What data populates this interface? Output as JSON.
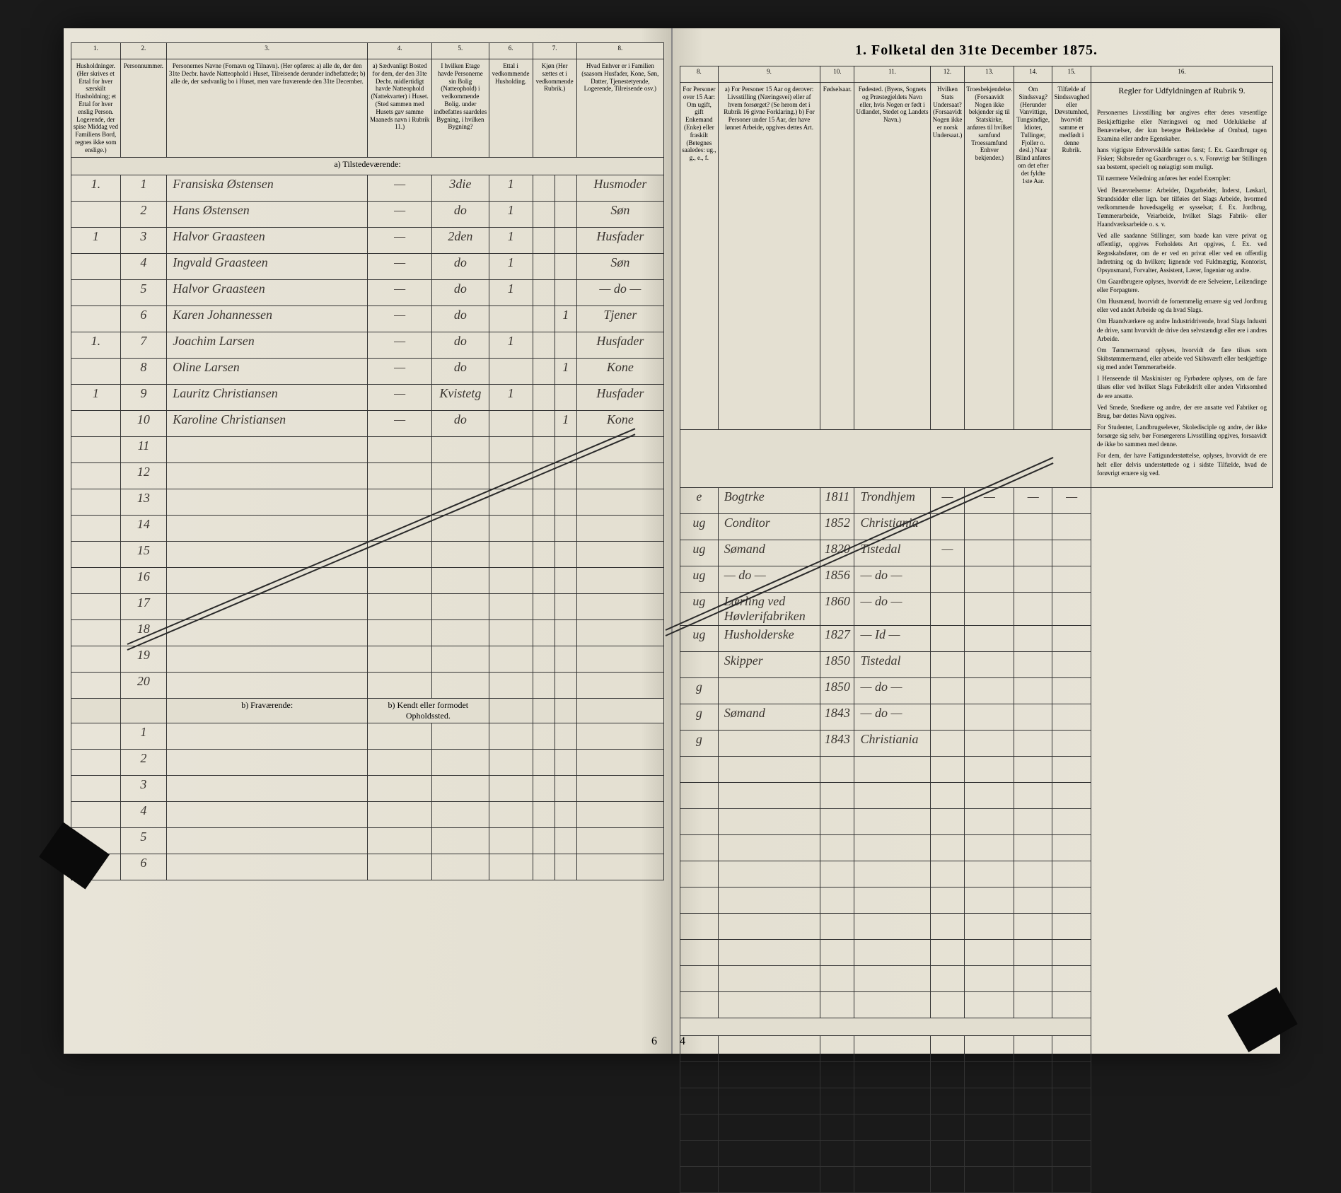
{
  "document": {
    "title": "1. Folketal den 31te December 1875.",
    "page_left": "6",
    "page_right": "4",
    "background_color": "#e8e4d8",
    "ink_color": "#3a3530",
    "line_color": "#333333"
  },
  "columns_left": [
    {
      "num": "1.",
      "header": "Husholdninger. (Her skrives et Ettal for hver særskilt Husholdning; et Ettal for hver enslig Person. Logerende, der spise Middag ved Familiens Bord, regnes ikke som enslige.)"
    },
    {
      "num": "2.",
      "header": "Personnummer."
    },
    {
      "num": "3.",
      "header": "Personernes Navne (Fornavn og Tilnavn). (Her opføres: a) alle de, der den 31te Decbr. havde Natteophold i Huset, Tilreisende derunder indbefattede; b) alle de, der sædvanlig bo i Huset, men vare fraværende den 31te December."
    },
    {
      "num": "4.",
      "header": "a) Sædvanligt Bosted for dem, der den 31te Decbr. midlertidigt havde Natteophold (Nattekvarter) i Huset. (Sted sammen med Husets gav samme Maaneds navn i Rubrik 11.)"
    },
    {
      "num": "5.",
      "header": "I hvilken Etage havde Personerne sin Bolig (Natteophold) i vedkommende Bolig. under indbefattes saardeles Bygning, i hvilken Bygning?"
    },
    {
      "num": "6.",
      "header": "Ettal i vedkommende Husholding."
    },
    {
      "num": "7.",
      "header": "Kjøn (Her sættes et i vedkommende Rubrik.)"
    },
    {
      "num": "8.",
      "header": "Hvad Enhver er i Familien (saasom Husfader, Kone, Søn, Datter, Tjenestetyende, Logerende, Tilreisende osv.)"
    }
  ],
  "columns_right": [
    {
      "num": "8.",
      "header": "For Personer over 15 Aar: Om ugift, gift Enkemand (Enke) eller fraskilt (Betegnes saaledes: ug., g., e., f."
    },
    {
      "num": "9.",
      "header": "a) For Personer 15 Aar og derover: Livsstilling (Næringsvei) eller af hvem forsørget? (Se herom det i Rubrik 16 givne Forklaring.) b) For Personer under 15 Aar, der have lønnet Arbeide, opgives dettes Art."
    },
    {
      "num": "10.",
      "header": "Fødselsaar."
    },
    {
      "num": "11.",
      "header": "Fødested. (Byens, Sognets og Præstegjeldets Navn eller, hvis Nogen er født i Udlandet, Stedet og Landets Navn.)"
    },
    {
      "num": "12.",
      "header": "Hvilken Stats Undersaat? (Forsaavidt Nogen ikke er norsk Undersaat.)"
    },
    {
      "num": "13.",
      "header": "Troesbekjendelse. (Forsaavidt Nogen ikke bekjender sig til Statskirke, anføres til hvilket samfund Troessamfund Enhver bekjender.)"
    },
    {
      "num": "14.",
      "header": "Om Sindssvag? (Herunder Vanvittige, Tungsindige, Idioter, Tullinger, Fjoller o. desl.) Naar Blind anføres om det efter det fyldte 1ste Aar."
    },
    {
      "num": "15.",
      "header": "Tilfælde af Sindssvaghed eller Døvstumhed, hvorvidt samme er medfødt i denne Rubrik."
    },
    {
      "num": "16.",
      "header": "Regler for Udfyldningen af Rubrik 9."
    }
  ],
  "section_a": "a) Tilstedeværende:",
  "section_b": "b) Fraværende:",
  "section_b_note": "b) Kendt eller formodet Opholdssted.",
  "rows": [
    {
      "hh": "1.",
      "num": "1",
      "name": "Fransiska Østensen",
      "col4": "—",
      "col5": "3die",
      "col6": "1",
      "col7": "",
      "col8l": "Husmoder",
      "col8r": "e",
      "col9": "Bogtrke",
      "col10": "1811",
      "col11": "Trondhjem",
      "col12": "—",
      "col13": "—",
      "col14": "—",
      "col15": "—"
    },
    {
      "hh": "",
      "num": "2",
      "name": "Hans Østensen",
      "col4": "—",
      "col5": "do",
      "col6": "1",
      "col7": "",
      "col8l": "Søn",
      "col8r": "ug",
      "col9": "Conditor",
      "col10": "1852",
      "col11": "Christiania",
      "col12": "",
      "col13": "",
      "col14": "",
      "col15": ""
    },
    {
      "hh": "1",
      "num": "3",
      "name": "Halvor Graasteen",
      "col4": "—",
      "col5": "2den",
      "col6": "1",
      "col7": "",
      "col8l": "Husfader",
      "col8r": "ug",
      "col9": "Sømand",
      "col10": "1820",
      "col11": "Tistedal",
      "col12": "—",
      "col13": "",
      "col14": "",
      "col15": ""
    },
    {
      "hh": "",
      "num": "4",
      "name": "Ingvald Graasteen",
      "col4": "—",
      "col5": "do",
      "col6": "1",
      "col7": "",
      "col8l": "Søn",
      "col8r": "ug",
      "col9": "— do —",
      "col10": "1856",
      "col11": "— do —",
      "col12": "",
      "col13": "",
      "col14": "",
      "col15": ""
    },
    {
      "hh": "",
      "num": "5",
      "name": "Halvor Graasteen",
      "col4": "—",
      "col5": "do",
      "col6": "1",
      "col7": "",
      "col8l": "— do —",
      "col8r": "ug",
      "col9": "Lærling ved Høvlerifabriken",
      "col10": "1860",
      "col11": "— do —",
      "col12": "",
      "col13": "",
      "col14": "",
      "col15": ""
    },
    {
      "hh": "",
      "num": "6",
      "name": "Karen Johannessen",
      "col4": "—",
      "col5": "do",
      "col6": "",
      "col7": "1",
      "col8l": "Tjener",
      "col8r": "ug",
      "col9": "Husholderske",
      "col10": "1827",
      "col11": "— Id —",
      "col12": "",
      "col13": "",
      "col14": "",
      "col15": ""
    },
    {
      "hh": "1.",
      "num": "7",
      "name": "Joachim Larsen",
      "col4": "—",
      "col5": "do",
      "col6": "1",
      "col7": "",
      "col8l": "Husfader",
      "col8r": "",
      "col9": "Skipper",
      "col10": "1850",
      "col11": "Tistedal",
      "col12": "",
      "col13": "",
      "col14": "",
      "col15": ""
    },
    {
      "hh": "",
      "num": "8",
      "name": "Oline Larsen",
      "col4": "—",
      "col5": "do",
      "col6": "",
      "col7": "1",
      "col8l": "Kone",
      "col8r": "g",
      "col9": "",
      "col10": "1850",
      "col11": "— do —",
      "col12": "",
      "col13": "",
      "col14": "",
      "col15": ""
    },
    {
      "hh": "1",
      "num": "9",
      "name": "Lauritz Christiansen",
      "col4": "—",
      "col5": "Kvistetg",
      "col6": "1",
      "col7": "",
      "col8l": "Husfader",
      "col8r": "g",
      "col9": "Sømand",
      "col10": "1843",
      "col11": "— do —",
      "col12": "",
      "col13": "",
      "col14": "",
      "col15": ""
    },
    {
      "hh": "",
      "num": "10",
      "name": "Karoline Christiansen",
      "col4": "—",
      "col5": "do",
      "col6": "",
      "col7": "1",
      "col8l": "Kone",
      "col8r": "g",
      "col9": "",
      "col10": "1843",
      "col11": "Christiania",
      "col12": "",
      "col13": "",
      "col14": "",
      "col15": ""
    }
  ],
  "empty_rows_a": [
    "11",
    "12",
    "13",
    "14",
    "15",
    "16",
    "17",
    "18",
    "19",
    "20"
  ],
  "empty_rows_b": [
    "1",
    "2",
    "3",
    "4",
    "5",
    "6"
  ],
  "rules_text": {
    "p1": "Personernes Livsstilling bør angives efter deres væsentlige Beskjæftigelse eller Næringsvei og med Udelukkelse af Benævnelser, der kun betegne Beklædelse af Ombud, tagen Examina eller andre Egenskaber.",
    "p2": "hans vigtigste Erhvervskilde sættes først; f. Ex. Gaardbruger og Fisker; Skibsreder og Gaardbruger o. s. v. Forøvrigt bør Stillingen saa bestemt, specielt og nøiagtigt som muligt.",
    "p3": "Til nærmere Veiledning anføres her endel Exempler:",
    "p4": "Ved Benævnelserne: Arbeider, Dagarbeider, Inderst, Løskarl, Strandsidder eller lign. bør tilføies det Slags Arbeide, hvormed vedkommende hovedsagelig er sysselsat; f. Ex. Jordbrug, Tømmerarbeide, Veiarbeide, hvilket Slags Fabrik- eller Haandværksarbeide o. s. v.",
    "p5": "Ved alle saadanne Stillinger, som baade kan være privat og offentligt, opgives Forholdets Art opgives, f. Ex. ved Regnskabsfører, om de er ved en privat eller ved en offentlig Indretning og da hvilken; lignende ved Fuldmægtig, Kontorist, Opsyns­mand, Forvalter, Assistent, Lærer, Ingeniør og andre.",
    "p6": "Om Gaardbrugere oplyses, hvorvidt de ere Selveiere, Leilændinge eller Forpagtere.",
    "p7": "Om Husmænd, hvorvidt de fornemmelig ernære sig ved Jordbrug eller ved andet Arbeide og da hvad Slags.",
    "p8": "Om Haandværkere og andre Industridrivende, hvad Slags Industri de drive, samt hvorvidt de drive den selvstændigt eller ere i andres Arbeide.",
    "p9": "Om Tømmermænd oplyses, hvorvidt de fare tilsøs som Skibstømmermænd, eller arbeide ved Skibsværft eller beskjæftige sig med andet Tømmerarbeide.",
    "p10": "I Henseende til Maskinister og Fyrbødere oplyses, om de fare tilsøs eller ved hvilket Slags Fabrikdrift eller anden Virksomhed de ere ansatte.",
    "p11": "Ved Smede, Snedkere og andre, der ere ansatte ved Fabriker og Brug, bør dettes Navn opgives.",
    "p12": "For Studenter, Landbrugselever, Skoledisciple og andre, der ikke forsørge sig selv, bør Forsørgerens Livsstilling opgives, forsaavidt de ikke bo sammen med denne.",
    "p13": "For dem, der have Fattigunderstøttelse, oplyses, hvorvidt de ere helt eller delvis understøttede og i sidste Tilfælde, hvad de forøvrigt ernære sig ved."
  }
}
